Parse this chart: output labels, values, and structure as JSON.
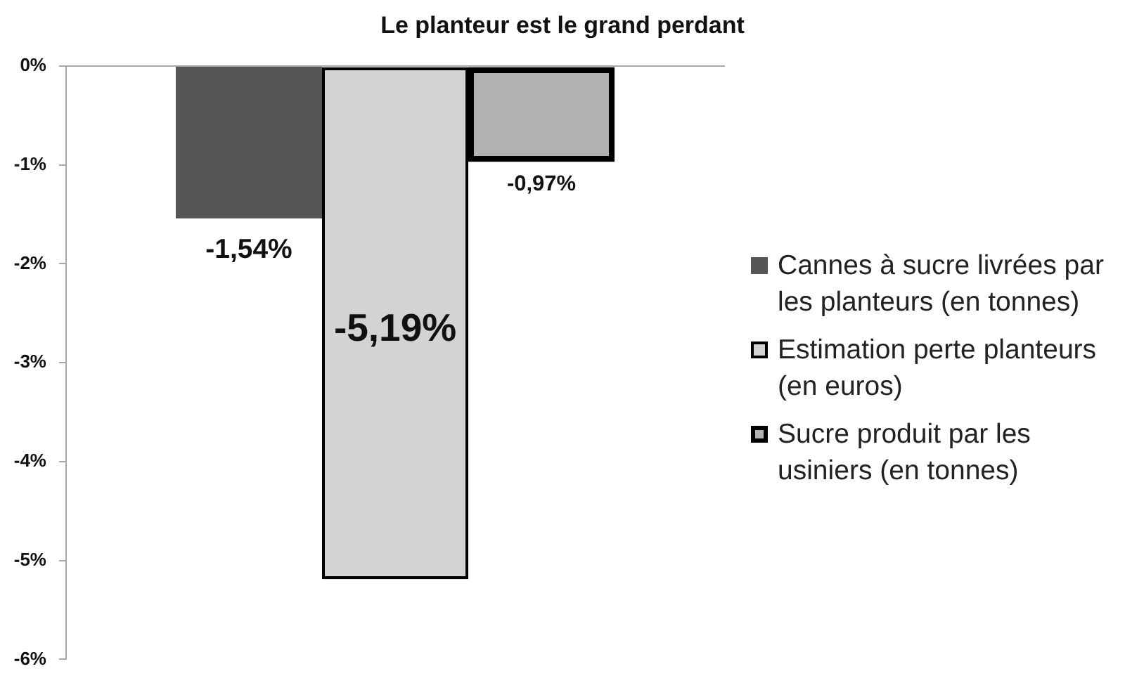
{
  "chart_data": {
    "type": "bar",
    "title": "Le planteur est le grand perdant",
    "categories": [
      null
    ],
    "series": [
      {
        "name": "Cannes à sucre livrées par les planteurs (en tonnes)",
        "color": "#555555",
        "values": [
          -1.54
        ],
        "value_labels": [
          "-1,54%"
        ]
      },
      {
        "name": "Estimation perte planteurs (en euros)",
        "color": "#d3d3d3",
        "values": [
          -5.19
        ],
        "value_labels": [
          "-5,19%"
        ]
      },
      {
        "name": "Sucre produit par les usiniers (en tonnes)",
        "color": "#b2b2b2",
        "values": [
          -0.97
        ],
        "value_labels": [
          "-0,97%"
        ]
      }
    ],
    "ylim": [
      -6,
      0
    ],
    "yticks": [
      {
        "value": 0,
        "label": "0%"
      },
      {
        "value": -1,
        "label": "-1%"
      },
      {
        "value": -2,
        "label": "-2%"
      },
      {
        "value": -3,
        "label": "-3%"
      },
      {
        "value": -4,
        "label": "-4%"
      },
      {
        "value": -5,
        "label": "-5%"
      },
      {
        "value": -6,
        "label": "-6%"
      }
    ],
    "legend": "right"
  }
}
